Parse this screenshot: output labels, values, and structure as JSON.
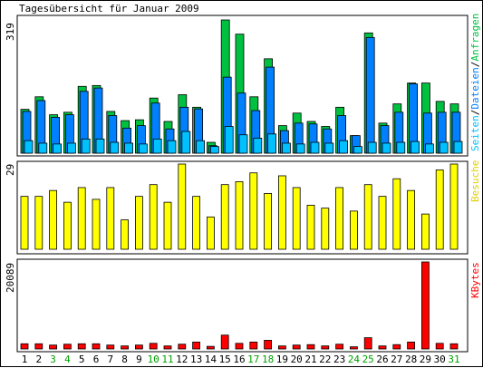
{
  "title": "Tagesübersicht für Januar 2009",
  "colors": {
    "hits": "#00c040",
    "files": "#0080ff",
    "pages": "#00c0ff",
    "visits": "#ffff00",
    "kbytes": "#ff0000",
    "weekday": "#000000",
    "weekend": "#00a000"
  },
  "chart_data": [
    {
      "type": "bar",
      "panel": "top",
      "y_max_label": "319",
      "ylim": [
        0,
        319
      ],
      "legend": {
        "pages": "Seiten",
        "sep1": "/",
        "files": "Dateien",
        "sep2": "/",
        "hits": "Anfragen"
      },
      "categories": [
        "1",
        "2",
        "3",
        "4",
        "5",
        "6",
        "7",
        "8",
        "9",
        "10",
        "11",
        "12",
        "13",
        "14",
        "15",
        "16",
        "17",
        "18",
        "19",
        "20",
        "21",
        "22",
        "23",
        "24",
        "25",
        "26",
        "27",
        "28",
        "29",
        "30",
        "31"
      ],
      "series": [
        {
          "name": "Anfragen",
          "values": [
            105,
            135,
            92,
            98,
            160,
            162,
            100,
            78,
            80,
            132,
            76,
            140,
            110,
            26,
            319,
            285,
            135,
            226,
            66,
            96,
            76,
            64,
            110,
            42,
            288,
            72,
            118,
            168,
            168,
            124,
            118
          ]
        },
        {
          "name": "Dateien",
          "values": [
            100,
            126,
            86,
            92,
            148,
            156,
            90,
            60,
            66,
            120,
            58,
            110,
            106,
            18,
            182,
            144,
            102,
            206,
            54,
            72,
            70,
            58,
            90,
            42,
            277,
            66,
            98,
            166,
            96,
            98,
            98
          ]
        },
        {
          "name": "Seiten",
          "values": [
            30,
            24,
            22,
            24,
            34,
            34,
            26,
            24,
            22,
            34,
            30,
            52,
            30,
            16,
            64,
            44,
            36,
            46,
            24,
            22,
            26,
            24,
            30,
            16,
            26,
            24,
            26,
            28,
            22,
            26,
            28
          ]
        }
      ]
    },
    {
      "type": "bar",
      "panel": "middle",
      "y_max_label": "29",
      "ylim": [
        0,
        29
      ],
      "legend": {
        "visits": "Besuche"
      },
      "categories": [
        "1",
        "2",
        "3",
        "4",
        "5",
        "6",
        "7",
        "8",
        "9",
        "10",
        "11",
        "12",
        "13",
        "14",
        "15",
        "16",
        "17",
        "18",
        "19",
        "20",
        "21",
        "22",
        "23",
        "24",
        "25",
        "26",
        "27",
        "28",
        "29",
        "30",
        "31"
      ],
      "series": [
        {
          "name": "Besuche",
          "values": [
            18,
            18,
            20,
            16,
            21,
            17,
            21,
            10,
            18,
            22,
            16,
            29,
            18,
            11,
            22,
            23,
            26,
            19,
            25,
            21,
            15,
            14,
            21,
            13,
            22,
            18,
            24,
            20,
            12,
            27,
            29
          ]
        }
      ]
    },
    {
      "type": "bar",
      "panel": "bottom",
      "y_max_label": "20089",
      "ylim": [
        0,
        20089
      ],
      "legend": {
        "kbytes": "KBytes"
      },
      "categories": [
        "1",
        "2",
        "3",
        "4",
        "5",
        "6",
        "7",
        "8",
        "9",
        "10",
        "11",
        "12",
        "13",
        "14",
        "15",
        "16",
        "17",
        "18",
        "19",
        "20",
        "21",
        "22",
        "23",
        "24",
        "25",
        "26",
        "27",
        "28",
        "29",
        "30",
        "31"
      ],
      "series": [
        {
          "name": "KBytes",
          "values": [
            1200,
            1200,
            900,
            1100,
            1200,
            1200,
            900,
            700,
            900,
            1300,
            700,
            1100,
            1600,
            600,
            3200,
            1300,
            1600,
            2000,
            700,
            900,
            1000,
            700,
            1100,
            500,
            2600,
            700,
            1000,
            1600,
            20089,
            1300,
            1200
          ]
        }
      ]
    }
  ],
  "day_labels": [
    "1",
    "2",
    "3",
    "4",
    "5",
    "6",
    "7",
    "8",
    "9",
    "10",
    "11",
    "12",
    "13",
    "14",
    "15",
    "16",
    "17",
    "18",
    "19",
    "20",
    "21",
    "22",
    "23",
    "24",
    "25",
    "26",
    "27",
    "28",
    "29",
    "30",
    "31"
  ],
  "weekend_days": [
    "3",
    "4",
    "10",
    "11",
    "17",
    "18",
    "24",
    "25",
    "31"
  ]
}
